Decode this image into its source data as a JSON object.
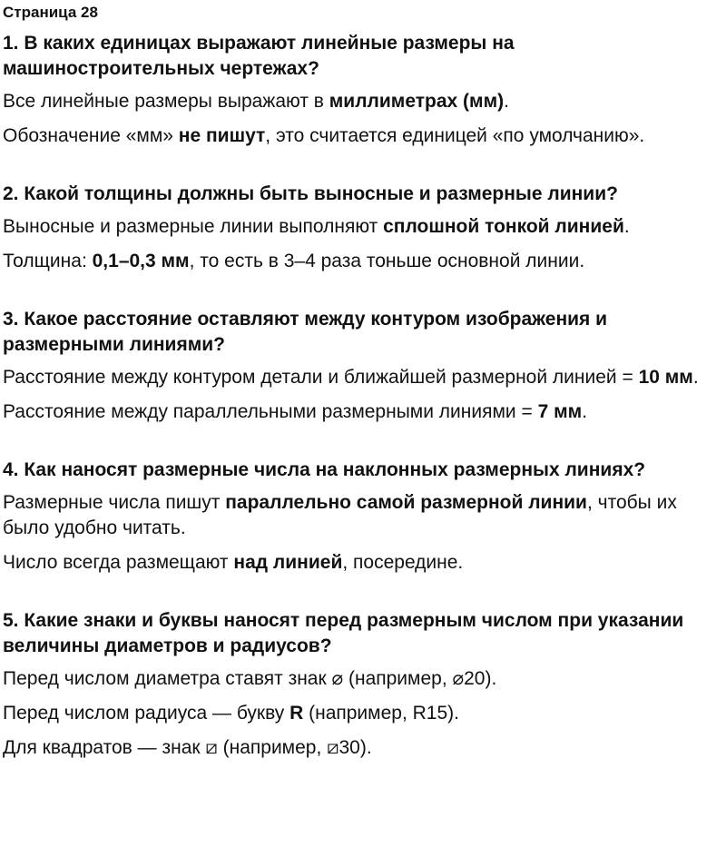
{
  "page_title": "Страница 28",
  "sections": [
    {
      "question": "1. В каких единицах выражают линейные размеры на машиностроительных чертежах?",
      "paragraphs": [
        [
          {
            "t": "Все линейные размеры выражают в "
          },
          {
            "t": "миллиметрах (мм)",
            "b": true
          },
          {
            "t": "."
          }
        ],
        [
          {
            "t": "Обозначение «мм» "
          },
          {
            "t": "не пишут",
            "b": true
          },
          {
            "t": ", это считается единицей «по умолчанию»."
          }
        ]
      ]
    },
    {
      "question": "2. Какой толщины должны быть выносные и размерные линии?",
      "paragraphs": [
        [
          {
            "t": "Выносные и размерные линии выполняют "
          },
          {
            "t": "сплошной тонкой линией",
            "b": true
          },
          {
            "t": "."
          }
        ],
        [
          {
            "t": "Толщина: "
          },
          {
            "t": "0,1–0,3 мм",
            "b": true
          },
          {
            "t": ", то есть в 3–4 раза тоньше основной линии."
          }
        ]
      ]
    },
    {
      "question": "3. Какое расстояние оставляют между контуром изображения и размерными линиями?",
      "paragraphs": [
        [
          {
            "t": "Расстояние между контуром детали и ближайшей размерной линией = "
          },
          {
            "t": "10 мм",
            "b": true
          },
          {
            "t": "."
          }
        ],
        [
          {
            "t": "Расстояние между параллельными размерными линиями = "
          },
          {
            "t": "7 мм",
            "b": true
          },
          {
            "t": "."
          }
        ]
      ]
    },
    {
      "question": "4. Как наносят размерные числа на наклонных размерных линиях?",
      "paragraphs": [
        [
          {
            "t": "Размерные числа пишут "
          },
          {
            "t": "параллельно самой размерной линии",
            "b": true
          },
          {
            "t": ", чтобы их было удобно читать."
          }
        ],
        [
          {
            "t": "Число всегда размещают "
          },
          {
            "t": "над линией",
            "b": true
          },
          {
            "t": ", посередине."
          }
        ]
      ]
    },
    {
      "question": "5. Какие знаки и буквы наносят перед размерным числом при указании величины диаметров и радиусов?",
      "paragraphs": [
        [
          {
            "t": "Перед числом диаметра ставят знак ⌀ (например, ⌀20)."
          }
        ],
        [
          {
            "t": "Перед числом радиуса — букву "
          },
          {
            "t": "R",
            "b": true
          },
          {
            "t": " (например, R15)."
          }
        ],
        [
          {
            "t": "Для квадратов — знак ⧄ (например, ⧄30)."
          }
        ]
      ]
    }
  ]
}
